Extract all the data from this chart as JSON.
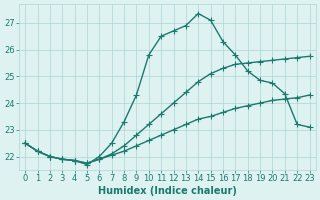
{
  "background_color": "#dff2f2",
  "grid_color": "#aed4d4",
  "line_color": "#1a7a6e",
  "xlabel": "Humidex (Indice chaleur)",
  "xlim": [
    -0.5,
    23.5
  ],
  "ylim": [
    21.5,
    27.7
  ],
  "yticks": [
    22,
    23,
    24,
    25,
    26,
    27
  ],
  "xticks": [
    0,
    1,
    2,
    3,
    4,
    5,
    6,
    7,
    8,
    9,
    10,
    11,
    12,
    13,
    14,
    15,
    16,
    17,
    18,
    19,
    20,
    21,
    22,
    23
  ],
  "line1_x": [
    0,
    1,
    2,
    3,
    4,
    5,
    6,
    7,
    8,
    9,
    10,
    11,
    12,
    13,
    14,
    15,
    16,
    17,
    18,
    19,
    20,
    21,
    22,
    23
  ],
  "line1_y": [
    22.5,
    22.2,
    22.0,
    21.9,
    21.85,
    21.75,
    21.9,
    22.05,
    22.2,
    22.4,
    22.6,
    22.8,
    23.0,
    23.2,
    23.4,
    23.5,
    23.65,
    23.8,
    23.9,
    24.0,
    24.1,
    24.15,
    24.2,
    24.3
  ],
  "line2_x": [
    0,
    1,
    2,
    3,
    4,
    5,
    6,
    7,
    8,
    9,
    10,
    11,
    12,
    13,
    14,
    15,
    16,
    17,
    18,
    19,
    20,
    21,
    22,
    23
  ],
  "line2_y": [
    22.5,
    22.2,
    22.0,
    21.9,
    21.85,
    21.75,
    21.9,
    22.1,
    22.4,
    22.8,
    23.2,
    23.6,
    24.0,
    24.4,
    24.8,
    25.1,
    25.3,
    25.45,
    25.5,
    25.55,
    25.6,
    25.65,
    25.7,
    25.75
  ],
  "line3_x": [
    0,
    1,
    2,
    3,
    4,
    5,
    6,
    7,
    8,
    9,
    10,
    11,
    12,
    13,
    14,
    15,
    16,
    17,
    18,
    19,
    20,
    21,
    22,
    23
  ],
  "line3_y": [
    22.5,
    22.2,
    22.0,
    21.9,
    21.85,
    21.7,
    22.0,
    22.5,
    23.3,
    24.3,
    25.8,
    26.5,
    26.7,
    26.9,
    27.35,
    27.1,
    26.3,
    25.8,
    25.2,
    24.85,
    24.75,
    24.35,
    23.2,
    23.1
  ],
  "marker": "+",
  "markersize": 4,
  "linewidth": 1.0,
  "fontsize_tick": 6,
  "fontsize_xlabel": 7
}
